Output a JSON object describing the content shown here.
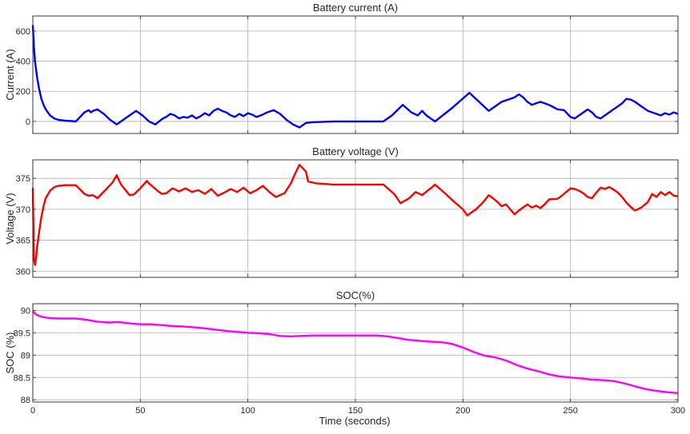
{
  "figure": {
    "xlabel": "Time (seconds)",
    "colors": {
      "grid": "#b0b0b0",
      "axis": "#262626"
    }
  },
  "chart_data": [
    {
      "type": "line",
      "title": "Battery current (A)",
      "xlabel": "",
      "ylabel": "Current (A)",
      "xlim": [
        0,
        300
      ],
      "ylim": [
        -80,
        700
      ],
      "xticks": [
        0,
        50,
        100,
        150,
        200,
        250,
        300
      ],
      "xtick_labels": [
        "",
        "",
        "",
        "",
        "",
        "",
        ""
      ],
      "yticks": [
        0,
        200,
        400,
        600
      ],
      "ytick_labels": [
        "0",
        "200",
        "400",
        "600"
      ],
      "grid": true,
      "color": "#0000ff",
      "x": [
        0,
        0.5,
        1,
        2,
        3,
        4,
        5,
        6,
        8,
        10,
        12,
        15,
        18,
        20,
        22,
        24,
        26,
        27,
        28,
        30,
        33,
        36,
        39,
        42,
        45,
        48,
        51,
        54,
        57,
        60,
        62,
        64,
        66,
        68,
        70,
        72,
        74,
        76,
        78,
        80,
        82,
        84,
        86,
        88,
        90,
        92,
        94,
        96,
        98,
        100,
        102,
        104,
        106,
        109,
        112,
        115,
        118,
        121,
        124,
        127,
        130,
        140,
        150,
        160,
        163,
        167,
        172,
        176,
        179,
        181,
        183,
        185,
        187,
        195,
        203,
        212,
        214,
        216,
        218,
        220,
        222,
        224,
        226,
        228,
        230,
        232,
        234,
        236,
        238,
        240,
        242,
        244,
        247,
        250,
        252,
        254,
        256,
        258,
        260,
        262,
        264,
        266,
        268,
        270,
        272,
        274,
        276,
        278,
        280,
        283,
        286,
        288,
        290,
        292,
        294,
        296,
        298,
        300
      ],
      "y": [
        640,
        500,
        400,
        290,
        210,
        150,
        110,
        80,
        40,
        20,
        10,
        5,
        2,
        0,
        30,
        60,
        75,
        60,
        70,
        80,
        50,
        10,
        -20,
        10,
        40,
        70,
        40,
        0,
        -20,
        15,
        30,
        50,
        40,
        20,
        30,
        25,
        40,
        20,
        35,
        55,
        40,
        70,
        85,
        70,
        60,
        40,
        30,
        50,
        35,
        55,
        45,
        30,
        40,
        60,
        75,
        50,
        10,
        -20,
        -40,
        -10,
        -5,
        0,
        0,
        0,
        0,
        40,
        110,
        60,
        40,
        70,
        40,
        20,
        0,
        90,
        190,
        70,
        90,
        110,
        130,
        140,
        150,
        160,
        180,
        160,
        130,
        110,
        120,
        130,
        120,
        110,
        95,
        80,
        75,
        30,
        20,
        40,
        60,
        80,
        60,
        30,
        20,
        40,
        60,
        80,
        100,
        120,
        150,
        145,
        130,
        100,
        70,
        60,
        50,
        40,
        55,
        45,
        60,
        50
      ]
    },
    {
      "type": "line",
      "title": "Battery voltage (V)",
      "xlabel": "",
      "ylabel": "Voltage (V)",
      "xlim": [
        0,
        300
      ],
      "ylim": [
        359,
        378
      ],
      "xticks": [
        0,
        50,
        100,
        150,
        200,
        250,
        300
      ],
      "xtick_labels": [
        "",
        "",
        "",
        "",
        "",
        "",
        ""
      ],
      "yticks": [
        360,
        365,
        370,
        375
      ],
      "ytick_labels": [
        "360",
        "365",
        "370",
        "375"
      ],
      "grid": true,
      "color": "#ff0000",
      "x": [
        0,
        0.5,
        1,
        1.5,
        2,
        3,
        4,
        5,
        6,
        8,
        10,
        12,
        15,
        18,
        20,
        24,
        26,
        28,
        30,
        34,
        37,
        39,
        41,
        45,
        47,
        50,
        53,
        54,
        56,
        58,
        60,
        62,
        65,
        68,
        71,
        74,
        77,
        80,
        83,
        86,
        89,
        92,
        95,
        98,
        101,
        104,
        107,
        110,
        113,
        117,
        120,
        122,
        124,
        127,
        128,
        132,
        140,
        150,
        160,
        163,
        168,
        171,
        175,
        178,
        181,
        185,
        187,
        192,
        195,
        200,
        202,
        206,
        209,
        212,
        214,
        216,
        218,
        220,
        224,
        226,
        230,
        232,
        234,
        236,
        238,
        240,
        244,
        246,
        250,
        252,
        254,
        256,
        258,
        260,
        262,
        264,
        266,
        268,
        270,
        272,
        274,
        276,
        278,
        280,
        283,
        286,
        288,
        290,
        292,
        294,
        296,
        298,
        300
      ],
      "y": [
        373.5,
        362,
        361,
        362,
        364,
        366.5,
        368.8,
        370.5,
        371.8,
        373,
        373.6,
        373.8,
        373.9,
        373.9,
        373.9,
        372.5,
        372.2,
        372.3,
        371.8,
        373.2,
        374.3,
        375.5,
        374,
        372.3,
        372.4,
        373.4,
        374.6,
        374.2,
        373.6,
        373,
        372.5,
        372.6,
        373.4,
        372.9,
        373.4,
        372.8,
        373.1,
        372.5,
        373.3,
        372.2,
        372.7,
        373.3,
        372.8,
        373.5,
        372.6,
        373.1,
        373.8,
        372.8,
        372,
        372.6,
        374.2,
        375.8,
        377.2,
        376.1,
        374.5,
        374.2,
        374,
        374,
        374,
        374,
        372.5,
        371,
        371.8,
        372.8,
        372.3,
        373.4,
        374,
        372.5,
        371.5,
        370,
        369,
        370,
        371,
        372.3,
        371.8,
        371.2,
        370.5,
        370.8,
        369.2,
        369.8,
        370.8,
        370.3,
        370.6,
        370.2,
        370.8,
        371.6,
        371.7,
        372.2,
        373.4,
        373.3,
        373,
        372.6,
        372,
        371.8,
        372.7,
        373.5,
        373.3,
        373.6,
        373.2,
        372.7,
        372,
        371.1,
        370.4,
        369.8,
        370.3,
        371.2,
        372.5,
        372,
        372.8,
        372.3,
        372.8,
        372.2,
        372.1
      ]
    },
    {
      "type": "line",
      "title": "SOC(%)",
      "xlabel": "Time (seconds)",
      "ylabel": "SOC (%)",
      "xlim": [
        0,
        300
      ],
      "ylim": [
        87.95,
        90.15
      ],
      "xticks": [
        0,
        50,
        100,
        150,
        200,
        250,
        300
      ],
      "xtick_labels": [
        "0",
        "50",
        "100",
        "150",
        "200",
        "250",
        "300"
      ],
      "yticks": [
        88,
        88.5,
        89,
        89.5,
        90
      ],
      "ytick_labels": [
        "88",
        "88.5",
        "89",
        "89.5",
        "90"
      ],
      "grid": true,
      "color": "#ff00ff",
      "x": [
        0,
        1,
        2,
        4,
        6,
        8,
        12,
        16,
        20,
        25,
        30,
        35,
        40,
        45,
        50,
        55,
        60,
        65,
        70,
        75,
        80,
        85,
        90,
        95,
        100,
        105,
        110,
        115,
        120,
        125,
        130,
        140,
        150,
        160,
        165,
        170,
        175,
        180,
        185,
        190,
        195,
        200,
        205,
        210,
        215,
        220,
        225,
        230,
        235,
        240,
        245,
        250,
        255,
        260,
        265,
        270,
        275,
        280,
        285,
        290,
        295,
        300
      ],
      "y": [
        89.98,
        89.93,
        89.9,
        89.86,
        89.84,
        89.83,
        89.82,
        89.82,
        89.82,
        89.79,
        89.75,
        89.73,
        89.74,
        89.71,
        89.69,
        89.69,
        89.67,
        89.65,
        89.64,
        89.62,
        89.6,
        89.57,
        89.54,
        89.52,
        89.5,
        89.49,
        89.47,
        89.43,
        89.42,
        89.43,
        89.44,
        89.44,
        89.44,
        89.44,
        89.42,
        89.38,
        89.34,
        89.32,
        89.3,
        89.29,
        89.25,
        89.17,
        89.07,
        88.99,
        88.95,
        88.88,
        88.78,
        88.7,
        88.64,
        88.57,
        88.52,
        88.5,
        88.48,
        88.45,
        88.44,
        88.42,
        88.37,
        88.3,
        88.24,
        88.2,
        88.17,
        88.15
      ]
    }
  ]
}
